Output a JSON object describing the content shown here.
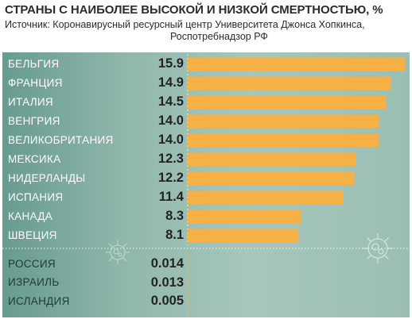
{
  "title": "СТРАНЫ С НАИБОЛЕЕ ВЫСОКОЙ И НИЗКОЙ СМЕРТНОСТЬЮ, %",
  "source_line1": "Источник: Коронавирусный ресурсный центр Университета Джонса Хопкинса,",
  "source_line2": "Роспотребнадзор РФ",
  "colors": {
    "bar": "#f7b044",
    "panel": "#9bbeb3",
    "divider": "#ffffff"
  },
  "chart_data": {
    "type": "bar",
    "orientation": "horizontal",
    "title": "СТРАНЫ С НАИБОЛЕЕ ВЫСОКОЙ И НИЗКОЙ СМЕРТНОСТЬЮ, %",
    "categories": [
      "БЕЛЬГИЯ",
      "ФРАНЦИЯ",
      "ИТАЛИЯ",
      "ВЕНГРИЯ",
      "ВЕЛИКОБРИТАНИЯ",
      "МЕКСИКА",
      "НИДЕРЛАНДЫ",
      "ИСПАНИЯ",
      "КАНАДА",
      "ШВЕЦИЯ",
      "РОССИЯ",
      "ИЗРАИЛЬ",
      "ИСЛАНДИЯ"
    ],
    "values": [
      15.9,
      14.9,
      14.5,
      14.0,
      14.0,
      12.3,
      12.2,
      11.4,
      8.3,
      8.1,
      0.014,
      0.013,
      0.005
    ],
    "value_labels": [
      "15.9",
      "14.9",
      "14.5",
      "14.0",
      "14.0",
      "12.3",
      "12.2",
      "11.4",
      "8.3",
      "8.1",
      "0.014",
      "0.013",
      "0.005"
    ],
    "groups": [
      {
        "name": "high",
        "count": 10
      },
      {
        "name": "low",
        "count": 3
      }
    ],
    "xlim": [
      0,
      15.9
    ],
    "grid": false,
    "legend": false
  }
}
